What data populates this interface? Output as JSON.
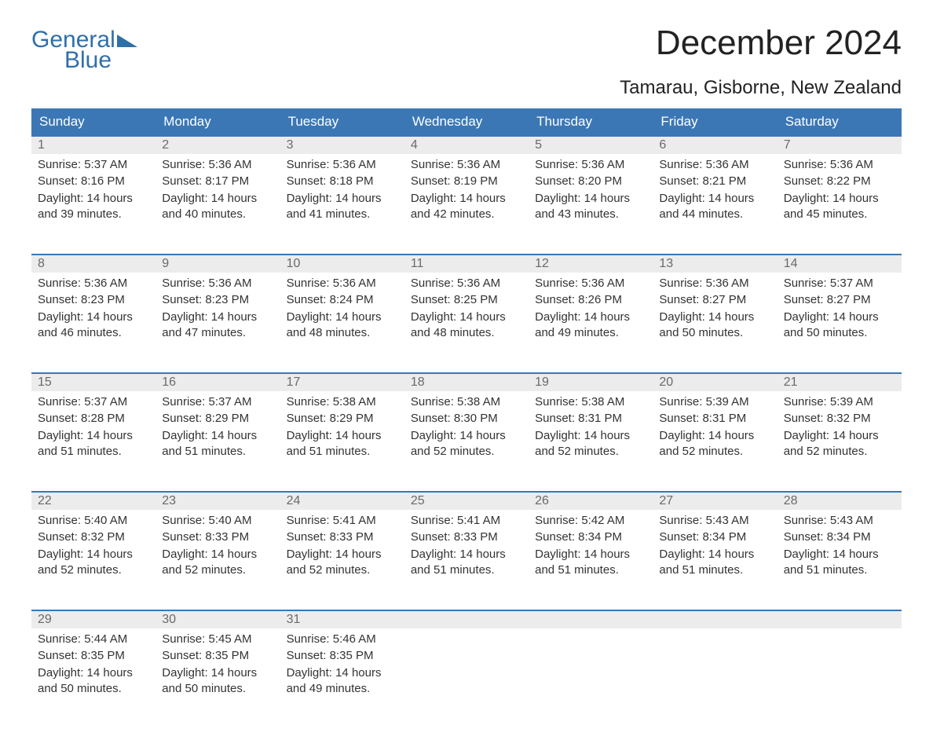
{
  "logo": {
    "line1": "General",
    "line2": "Blue",
    "color": "#2f6fa8"
  },
  "title": "December 2024",
  "location": "Tamarau, Gisborne, New Zealand",
  "colors": {
    "header_bg": "#3b77b5",
    "header_text": "#ffffff",
    "daynum_bg": "#ececec",
    "daynum_text": "#6a6a6a",
    "border": "#3b77b5",
    "body_text": "#333333",
    "page_bg": "#ffffff"
  },
  "weekdays": [
    "Sunday",
    "Monday",
    "Tuesday",
    "Wednesday",
    "Thursday",
    "Friday",
    "Saturday"
  ],
  "labels": {
    "sunrise": "Sunrise: ",
    "sunset": "Sunset: ",
    "daylight": "Daylight: "
  },
  "days": [
    {
      "n": 1,
      "sunrise": "5:37 AM",
      "sunset": "8:16 PM",
      "daylight": "14 hours and 39 minutes."
    },
    {
      "n": 2,
      "sunrise": "5:36 AM",
      "sunset": "8:17 PM",
      "daylight": "14 hours and 40 minutes."
    },
    {
      "n": 3,
      "sunrise": "5:36 AM",
      "sunset": "8:18 PM",
      "daylight": "14 hours and 41 minutes."
    },
    {
      "n": 4,
      "sunrise": "5:36 AM",
      "sunset": "8:19 PM",
      "daylight": "14 hours and 42 minutes."
    },
    {
      "n": 5,
      "sunrise": "5:36 AM",
      "sunset": "8:20 PM",
      "daylight": "14 hours and 43 minutes."
    },
    {
      "n": 6,
      "sunrise": "5:36 AM",
      "sunset": "8:21 PM",
      "daylight": "14 hours and 44 minutes."
    },
    {
      "n": 7,
      "sunrise": "5:36 AM",
      "sunset": "8:22 PM",
      "daylight": "14 hours and 45 minutes."
    },
    {
      "n": 8,
      "sunrise": "5:36 AM",
      "sunset": "8:23 PM",
      "daylight": "14 hours and 46 minutes."
    },
    {
      "n": 9,
      "sunrise": "5:36 AM",
      "sunset": "8:23 PM",
      "daylight": "14 hours and 47 minutes."
    },
    {
      "n": 10,
      "sunrise": "5:36 AM",
      "sunset": "8:24 PM",
      "daylight": "14 hours and 48 minutes."
    },
    {
      "n": 11,
      "sunrise": "5:36 AM",
      "sunset": "8:25 PM",
      "daylight": "14 hours and 48 minutes."
    },
    {
      "n": 12,
      "sunrise": "5:36 AM",
      "sunset": "8:26 PM",
      "daylight": "14 hours and 49 minutes."
    },
    {
      "n": 13,
      "sunrise": "5:36 AM",
      "sunset": "8:27 PM",
      "daylight": "14 hours and 50 minutes."
    },
    {
      "n": 14,
      "sunrise": "5:37 AM",
      "sunset": "8:27 PM",
      "daylight": "14 hours and 50 minutes."
    },
    {
      "n": 15,
      "sunrise": "5:37 AM",
      "sunset": "8:28 PM",
      "daylight": "14 hours and 51 minutes."
    },
    {
      "n": 16,
      "sunrise": "5:37 AM",
      "sunset": "8:29 PM",
      "daylight": "14 hours and 51 minutes."
    },
    {
      "n": 17,
      "sunrise": "5:38 AM",
      "sunset": "8:29 PM",
      "daylight": "14 hours and 51 minutes."
    },
    {
      "n": 18,
      "sunrise": "5:38 AM",
      "sunset": "8:30 PM",
      "daylight": "14 hours and 52 minutes."
    },
    {
      "n": 19,
      "sunrise": "5:38 AM",
      "sunset": "8:31 PM",
      "daylight": "14 hours and 52 minutes."
    },
    {
      "n": 20,
      "sunrise": "5:39 AM",
      "sunset": "8:31 PM",
      "daylight": "14 hours and 52 minutes."
    },
    {
      "n": 21,
      "sunrise": "5:39 AM",
      "sunset": "8:32 PM",
      "daylight": "14 hours and 52 minutes."
    },
    {
      "n": 22,
      "sunrise": "5:40 AM",
      "sunset": "8:32 PM",
      "daylight": "14 hours and 52 minutes."
    },
    {
      "n": 23,
      "sunrise": "5:40 AM",
      "sunset": "8:33 PM",
      "daylight": "14 hours and 52 minutes."
    },
    {
      "n": 24,
      "sunrise": "5:41 AM",
      "sunset": "8:33 PM",
      "daylight": "14 hours and 52 minutes."
    },
    {
      "n": 25,
      "sunrise": "5:41 AM",
      "sunset": "8:33 PM",
      "daylight": "14 hours and 51 minutes."
    },
    {
      "n": 26,
      "sunrise": "5:42 AM",
      "sunset": "8:34 PM",
      "daylight": "14 hours and 51 minutes."
    },
    {
      "n": 27,
      "sunrise": "5:43 AM",
      "sunset": "8:34 PM",
      "daylight": "14 hours and 51 minutes."
    },
    {
      "n": 28,
      "sunrise": "5:43 AM",
      "sunset": "8:34 PM",
      "daylight": "14 hours and 51 minutes."
    },
    {
      "n": 29,
      "sunrise": "5:44 AM",
      "sunset": "8:35 PM",
      "daylight": "14 hours and 50 minutes."
    },
    {
      "n": 30,
      "sunrise": "5:45 AM",
      "sunset": "8:35 PM",
      "daylight": "14 hours and 50 minutes."
    },
    {
      "n": 31,
      "sunrise": "5:46 AM",
      "sunset": "8:35 PM",
      "daylight": "14 hours and 49 minutes."
    }
  ]
}
